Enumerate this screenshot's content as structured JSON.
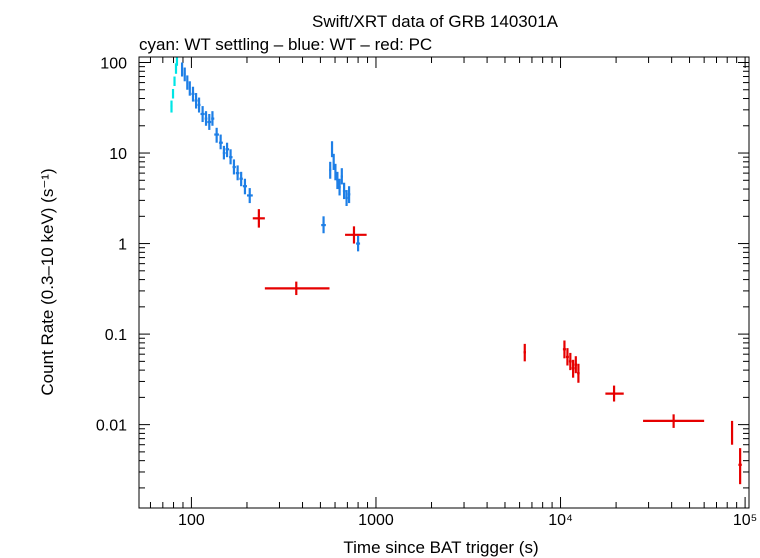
{
  "chart_data": {
    "type": "scatter",
    "title": "Swift/XRT data of GRB 140301A",
    "subtitle": "cyan: WT settling – blue: WT – red: PC",
    "xlabel": "Time since BAT trigger (s)",
    "ylabel": "Count Rate (0.3–10 keV) (s⁻¹)",
    "xscale": "log",
    "yscale": "log",
    "xlim": [
      52,
      105000
    ],
    "ylim": [
      0.0012,
      115
    ],
    "x_ticks": [
      {
        "value": 100,
        "label": "100"
      },
      {
        "value": 1000,
        "label": "1000"
      },
      {
        "value": 10000,
        "label": "10⁴"
      },
      {
        "value": 100000,
        "label": "10⁵"
      }
    ],
    "y_ticks": [
      {
        "value": 100,
        "label": "100"
      },
      {
        "value": 10,
        "label": "10"
      },
      {
        "value": 1,
        "label": "1"
      },
      {
        "value": 0.1,
        "label": "0.1"
      },
      {
        "value": 0.01,
        "label": "0.01"
      }
    ],
    "series": [
      {
        "name": "WT settling",
        "color": "#00e5e5",
        "points": [
          {
            "x": 78,
            "x_lo": 77,
            "x_hi": 79,
            "y": 33,
            "y_lo": 28,
            "y_hi": 38
          },
          {
            "x": 79.5,
            "x_lo": 79,
            "x_hi": 80,
            "y": 45,
            "y_lo": 40,
            "y_hi": 51
          },
          {
            "x": 81,
            "x_lo": 80,
            "x_hi": 82,
            "y": 62,
            "y_lo": 55,
            "y_hi": 70
          },
          {
            "x": 82.5,
            "x_lo": 82,
            "x_hi": 83,
            "y": 85,
            "y_lo": 75,
            "y_hi": 98
          },
          {
            "x": 83.5,
            "x_lo": 83,
            "x_hi": 84,
            "y": 105,
            "y_lo": 92,
            "y_hi": 115
          }
        ]
      },
      {
        "name": "WT",
        "color": "#1e7fe6",
        "points": [
          {
            "x": 89,
            "x_lo": 88,
            "x_hi": 90,
            "y": 85,
            "y_lo": 70,
            "y_hi": 100
          },
          {
            "x": 92,
            "x_lo": 91,
            "x_hi": 93,
            "y": 75,
            "y_lo": 62,
            "y_hi": 88
          },
          {
            "x": 95,
            "x_lo": 94,
            "x_hi": 96,
            "y": 60,
            "y_lo": 50,
            "y_hi": 72
          },
          {
            "x": 98,
            "x_lo": 97,
            "x_hi": 99,
            "y": 52,
            "y_lo": 43,
            "y_hi": 62
          },
          {
            "x": 102,
            "x_lo": 100,
            "x_hi": 104,
            "y": 45,
            "y_lo": 37,
            "y_hi": 54
          },
          {
            "x": 106,
            "x_lo": 104,
            "x_hi": 108,
            "y": 38,
            "y_lo": 31,
            "y_hi": 46
          },
          {
            "x": 110,
            "x_lo": 108,
            "x_hi": 112,
            "y": 34,
            "y_lo": 28,
            "y_hi": 41
          },
          {
            "x": 115,
            "x_lo": 112,
            "x_hi": 118,
            "y": 27,
            "y_lo": 22,
            "y_hi": 33
          },
          {
            "x": 120,
            "x_lo": 118,
            "x_hi": 122,
            "y": 24,
            "y_lo": 20,
            "y_hi": 29
          },
          {
            "x": 125,
            "x_lo": 122,
            "x_hi": 128,
            "y": 22,
            "y_lo": 18,
            "y_hi": 27
          },
          {
            "x": 130,
            "x_lo": 128,
            "x_hi": 133,
            "y": 24,
            "y_lo": 20,
            "y_hi": 29
          },
          {
            "x": 137,
            "x_lo": 133,
            "x_hi": 141,
            "y": 16,
            "y_lo": 13,
            "y_hi": 19
          },
          {
            "x": 144,
            "x_lo": 141,
            "x_hi": 148,
            "y": 13,
            "y_lo": 11,
            "y_hi": 16
          },
          {
            "x": 150,
            "x_lo": 148,
            "x_hi": 153,
            "y": 10,
            "y_lo": 8.5,
            "y_hi": 12
          },
          {
            "x": 156,
            "x_lo": 153,
            "x_hi": 160,
            "y": 11,
            "y_lo": 9,
            "y_hi": 13
          },
          {
            "x": 163,
            "x_lo": 160,
            "x_hi": 167,
            "y": 9,
            "y_lo": 7.5,
            "y_hi": 11
          },
          {
            "x": 170,
            "x_lo": 167,
            "x_hi": 174,
            "y": 7,
            "y_lo": 5.8,
            "y_hi": 8.5
          },
          {
            "x": 178,
            "x_lo": 174,
            "x_hi": 182,
            "y": 6,
            "y_lo": 5,
            "y_hi": 7.3
          },
          {
            "x": 186,
            "x_lo": 182,
            "x_hi": 190,
            "y": 5.2,
            "y_lo": 4.3,
            "y_hi": 6.2
          },
          {
            "x": 195,
            "x_lo": 190,
            "x_hi": 200,
            "y": 4.3,
            "y_lo": 3.5,
            "y_hi": 5.2
          },
          {
            "x": 207,
            "x_lo": 200,
            "x_hi": 215,
            "y": 3.4,
            "y_lo": 2.8,
            "y_hi": 4.1
          },
          {
            "x": 520,
            "x_lo": 505,
            "x_hi": 535,
            "y": 1.6,
            "y_lo": 1.3,
            "y_hi": 2.0
          },
          {
            "x": 565,
            "x_lo": 558,
            "x_hi": 572,
            "y": 6.5,
            "y_lo": 5.2,
            "y_hi": 8
          },
          {
            "x": 578,
            "x_lo": 572,
            "x_hi": 584,
            "y": 11,
            "y_lo": 9,
            "y_hi": 13.5
          },
          {
            "x": 590,
            "x_lo": 584,
            "x_hi": 596,
            "y": 8,
            "y_lo": 6.5,
            "y_hi": 9.8
          },
          {
            "x": 603,
            "x_lo": 596,
            "x_hi": 610,
            "y": 6.2,
            "y_lo": 5,
            "y_hi": 7.6
          },
          {
            "x": 618,
            "x_lo": 610,
            "x_hi": 626,
            "y": 5,
            "y_lo": 4,
            "y_hi": 6.2
          },
          {
            "x": 635,
            "x_lo": 626,
            "x_hi": 644,
            "y": 4.2,
            "y_lo": 3.4,
            "y_hi": 5.2
          },
          {
            "x": 653,
            "x_lo": 644,
            "x_hi": 662,
            "y": 5.5,
            "y_lo": 4.5,
            "y_hi": 6.8
          },
          {
            "x": 672,
            "x_lo": 662,
            "x_hi": 682,
            "y": 3.8,
            "y_lo": 3.1,
            "y_hi": 4.7
          },
          {
            "x": 693,
            "x_lo": 682,
            "x_hi": 704,
            "y": 3.2,
            "y_lo": 2.6,
            "y_hi": 3.9
          },
          {
            "x": 715,
            "x_lo": 704,
            "x_hi": 726,
            "y": 3.5,
            "y_lo": 2.8,
            "y_hi": 4.3
          },
          {
            "x": 800,
            "x_lo": 780,
            "x_hi": 820,
            "y": 1.0,
            "y_lo": 0.82,
            "y_hi": 1.22
          }
        ]
      },
      {
        "name": "PC",
        "color": "#e60000",
        "points": [
          {
            "x": 232,
            "x_lo": 215,
            "x_hi": 250,
            "y": 1.9,
            "y_lo": 1.5,
            "y_hi": 2.4
          },
          {
            "x": 370,
            "x_lo": 250,
            "x_hi": 560,
            "y": 0.32,
            "y_lo": 0.27,
            "y_hi": 0.38
          },
          {
            "x": 760,
            "x_lo": 680,
            "x_hi": 890,
            "y": 1.25,
            "y_lo": 1.0,
            "y_hi": 1.55
          },
          {
            "x": 6400,
            "x_lo": 6300,
            "x_hi": 6500,
            "y": 0.063,
            "y_lo": 0.05,
            "y_hi": 0.078
          },
          {
            "x": 10500,
            "x_lo": 10300,
            "x_hi": 10700,
            "y": 0.068,
            "y_lo": 0.054,
            "y_hi": 0.085
          },
          {
            "x": 10900,
            "x_lo": 10700,
            "x_hi": 11100,
            "y": 0.056,
            "y_lo": 0.045,
            "y_hi": 0.07
          },
          {
            "x": 11300,
            "x_lo": 11100,
            "x_hi": 11500,
            "y": 0.05,
            "y_lo": 0.04,
            "y_hi": 0.062
          },
          {
            "x": 11700,
            "x_lo": 11500,
            "x_hi": 11900,
            "y": 0.042,
            "y_lo": 0.033,
            "y_hi": 0.052
          },
          {
            "x": 12100,
            "x_lo": 11900,
            "x_hi": 12300,
            "y": 0.046,
            "y_lo": 0.037,
            "y_hi": 0.057
          },
          {
            "x": 12500,
            "x_lo": 12300,
            "x_hi": 12700,
            "y": 0.037,
            "y_lo": 0.029,
            "y_hi": 0.047
          },
          {
            "x": 19500,
            "x_lo": 17500,
            "x_hi": 22000,
            "y": 0.022,
            "y_lo": 0.018,
            "y_hi": 0.027
          },
          {
            "x": 41000,
            "x_lo": 28000,
            "x_hi": 60000,
            "y": 0.011,
            "y_lo": 0.0092,
            "y_hi": 0.013
          },
          {
            "x": 85000,
            "x_lo": 84000,
            "x_hi": 86000,
            "y": 0.0085,
            "y_lo": 0.006,
            "y_hi": 0.011
          },
          {
            "x": 94000,
            "x_lo": 92000,
            "x_hi": 96000,
            "y": 0.0036,
            "y_lo": 0.0022,
            "y_hi": 0.0055
          }
        ]
      }
    ]
  }
}
